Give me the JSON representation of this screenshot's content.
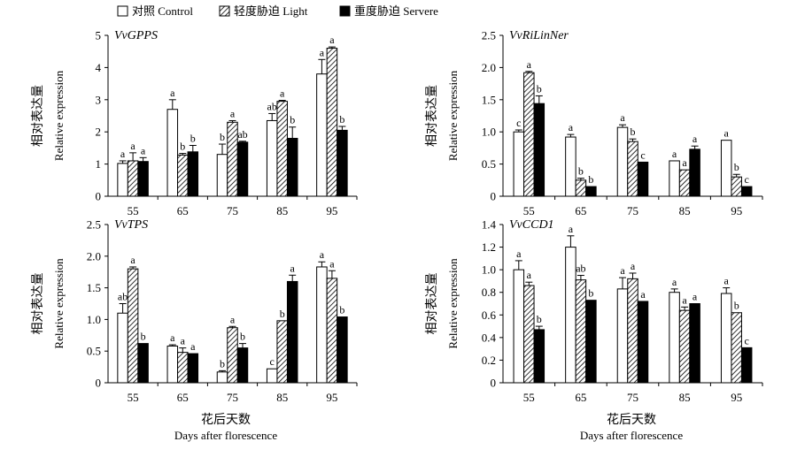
{
  "legend": {
    "placement": "top-left",
    "items": [
      {
        "label": "对照 Control",
        "pattern": "open"
      },
      {
        "label": "轻度胁迫 Light",
        "pattern": "hatch"
      },
      {
        "label": "重度胁迫 Servere",
        "pattern": "solid"
      }
    ]
  },
  "x_title_cn": "花后天数",
  "x_title_en": "Days after florescence",
  "y_title_cn": "相对表达量",
  "y_title_en": "Relative expression",
  "colors": {
    "open": "#ffffff",
    "hatch": "#ffffff",
    "solid": "#000000",
    "stroke": "#000000"
  },
  "chart_data": [
    {
      "type": "bar",
      "title": "VvGPPS",
      "categories": [
        "55",
        "65",
        "75",
        "85",
        "95"
      ],
      "ylim": [
        0,
        5
      ],
      "yticks": [
        "0",
        "1",
        "2",
        "3",
        "4",
        "5"
      ],
      "series": [
        {
          "name": "对照 Control",
          "values": [
            1.02,
            2.7,
            1.3,
            2.35,
            3.8
          ],
          "errors": [
            0.08,
            0.3,
            0.32,
            0.22,
            0.45
          ],
          "labels": [
            "a",
            "a",
            "b",
            "ab",
            "a"
          ]
        },
        {
          "name": "轻度胁迫 Light",
          "values": [
            1.1,
            1.28,
            2.3,
            2.95,
            4.6
          ],
          "errors": [
            0.25,
            0.05,
            0.05,
            0.03,
            0.04
          ],
          "labels": [
            "a",
            "b",
            "a",
            "a",
            "a"
          ]
        },
        {
          "name": "重度胁迫 Servere",
          "values": [
            1.08,
            1.38,
            1.68,
            1.8,
            2.05
          ],
          "errors": [
            0.12,
            0.2,
            0.03,
            0.35,
            0.12
          ],
          "labels": [
            "a",
            "b",
            "ab",
            "b",
            "b"
          ]
        }
      ]
    },
    {
      "type": "bar",
      "title": "VvRiLinNer",
      "categories": [
        "55",
        "65",
        "75",
        "85",
        "95"
      ],
      "ylim": [
        0,
        2.5
      ],
      "yticks": [
        "0",
        "0.5",
        "1.0",
        "1.5",
        "2.0",
        "2.5"
      ],
      "series": [
        {
          "name": "对照 Control",
          "values": [
            1.0,
            0.92,
            1.07,
            0.55,
            0.87
          ],
          "errors": [
            0.03,
            0.04,
            0.04,
            0.0,
            0.0
          ],
          "labels": [
            "c",
            "a",
            "a",
            "a",
            "a"
          ]
        },
        {
          "name": "轻度胁迫 Light",
          "values": [
            1.92,
            0.25,
            0.85,
            0.41,
            0.3
          ],
          "errors": [
            0.02,
            0.03,
            0.04,
            0.0,
            0.04
          ],
          "labels": [
            "a",
            "b",
            "b",
            "a",
            "b"
          ]
        },
        {
          "name": "重度胁迫 Servere",
          "values": [
            1.44,
            0.15,
            0.53,
            0.73,
            0.15
          ],
          "errors": [
            0.12,
            0.0,
            0.0,
            0.05,
            0.0
          ],
          "labels": [
            "b",
            "b",
            "c",
            "a",
            "c"
          ]
        }
      ]
    },
    {
      "type": "bar",
      "title": "VvTPS",
      "categories": [
        "55",
        "65",
        "75",
        "85",
        "95"
      ],
      "ylim": [
        0,
        2.5
      ],
      "yticks": [
        "0",
        "0.5",
        "1.0",
        "1.5",
        "2.0",
        "2.5"
      ],
      "series": [
        {
          "name": "对照 Control",
          "values": [
            1.1,
            0.58,
            0.17,
            0.22,
            1.83
          ],
          "errors": [
            0.15,
            0.02,
            0.02,
            0.0,
            0.08
          ],
          "labels": [
            "ab",
            "a",
            "b",
            "c",
            "a"
          ]
        },
        {
          "name": "轻度胁迫 Light",
          "values": [
            1.8,
            0.48,
            0.87,
            0.98,
            1.65
          ],
          "errors": [
            0.03,
            0.07,
            0.02,
            0.0,
            0.12
          ],
          "labels": [
            "a",
            "a",
            "a",
            "b",
            "a"
          ]
        },
        {
          "name": "重度胁迫 Servere",
          "values": [
            0.62,
            0.46,
            0.55,
            1.6,
            1.04
          ],
          "errors": [
            0.0,
            0.0,
            0.07,
            0.1,
            0.0
          ],
          "labels": [
            "b",
            "a",
            "b",
            "a",
            "b"
          ]
        }
      ]
    },
    {
      "type": "bar",
      "title": "VvCCD1",
      "categories": [
        "55",
        "65",
        "75",
        "85",
        "95"
      ],
      "ylim": [
        0,
        1.4
      ],
      "yticks": [
        "0",
        "0.2",
        "0.4",
        "0.6",
        "0.8",
        "1.0",
        "1.2",
        "1.4"
      ],
      "series": [
        {
          "name": "对照 Control",
          "values": [
            1.0,
            1.2,
            0.83,
            0.8,
            0.79
          ],
          "errors": [
            0.08,
            0.1,
            0.1,
            0.03,
            0.05
          ],
          "labels": [
            "a",
            "a",
            "a",
            "a",
            "a"
          ]
        },
        {
          "name": "轻度胁迫 Light",
          "values": [
            0.86,
            0.91,
            0.92,
            0.64,
            0.62
          ],
          "errors": [
            0.03,
            0.04,
            0.05,
            0.03,
            0.0
          ],
          "labels": [
            "a",
            "ab",
            "a",
            "a",
            "b"
          ]
        },
        {
          "name": "重度胁迫 Servere",
          "values": [
            0.47,
            0.73,
            0.72,
            0.7,
            0.31
          ],
          "errors": [
            0.03,
            0.0,
            0.0,
            0.0,
            0.0
          ],
          "labels": [
            "b",
            "b",
            "a",
            "a",
            "c"
          ]
        }
      ]
    }
  ]
}
